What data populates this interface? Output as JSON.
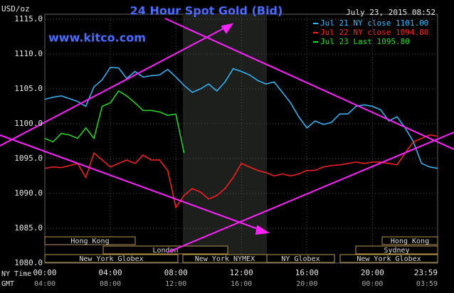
{
  "chart_data": {
    "type": "line",
    "title": "24 Hour Spot Gold (Bid)",
    "site": "www.kitco.com",
    "unit": "USD/oz",
    "timestamp": "July 23, 2015 08:52",
    "x_axis_labels": [
      "NY Time",
      "GMT"
    ],
    "x": [
      0,
      0.5,
      1,
      1.5,
      2,
      2.5,
      3,
      3.5,
      4,
      4.5,
      5,
      5.5,
      6,
      6.5,
      7,
      7.5,
      8,
      8.5,
      9,
      9.5,
      10,
      10.5,
      11,
      11.5,
      12,
      12.5,
      13,
      13.5,
      14,
      14.5,
      15,
      15.5,
      16,
      16.5,
      17,
      17.5,
      18,
      18.5,
      19,
      19.5,
      20,
      20.5,
      21,
      21.5,
      22,
      22.5,
      23,
      23.5,
      23.98
    ],
    "xlim": [
      0,
      23.98
    ],
    "xticks": [
      {
        "value": 0,
        "label": "00:00"
      },
      {
        "value": 4,
        "label": "04:00"
      },
      {
        "value": 8,
        "label": "08:00"
      },
      {
        "value": 12,
        "label": "12:00"
      },
      {
        "value": 16,
        "label": "16:00"
      },
      {
        "value": 20,
        "label": "20:00"
      },
      {
        "value": 23.98,
        "label": "23:59"
      }
    ],
    "gmt_tick_labels": [
      "04:00",
      "08:00",
      "12:00",
      "16:00",
      "20:00",
      "00:00",
      "03:59"
    ],
    "ylim": [
      1080,
      1115
    ],
    "yticks": [
      {
        "value": 1080,
        "label": "1080.0"
      },
      {
        "value": 1085,
        "label": "1085.0"
      },
      {
        "value": 1090,
        "label": "1090.0"
      },
      {
        "value": 1095,
        "label": "1095.0"
      },
      {
        "value": 1100,
        "label": "1100.0"
      },
      {
        "value": 1105,
        "label": "1105.0"
      },
      {
        "value": 1110,
        "label": "1110.0"
      },
      {
        "value": 1115,
        "label": "1115.0"
      }
    ],
    "grid": true,
    "sessions": [
      "Hong Kong",
      "London",
      "New York Globex",
      "New York NYMEX",
      "NY Globex",
      "Hong Kong",
      "Sydney",
      "New York Globex"
    ],
    "series": [
      {
        "name": "Jul 21 NY close 1101.00",
        "color": "#33bbff",
        "values": [
          1103.5,
          1103.8,
          1104,
          1103.6,
          1103.2,
          1102.5,
          1105.3,
          1106.3,
          1108.1,
          1108,
          1106.5,
          1107.5,
          1106.7,
          1106.9,
          1107,
          1107.8,
          1106.7,
          1105.5,
          1104.5,
          1105,
          1105.7,
          1104.7,
          1106,
          1107.9,
          1107.5,
          1107,
          1106.2,
          1105.7,
          1106,
          1104.5,
          1103,
          1101,
          1099.4,
          1100.4,
          1099.9,
          1100.2,
          1101.4,
          1101.4,
          1102.5,
          1102.7,
          1102.5,
          1102,
          1100.4,
          1101,
          1099.4,
          1097.4,
          1094.3,
          1093.8,
          1093.6
        ]
      },
      {
        "name": "Jul 22 NY close 1094.80",
        "color": "#ff2020",
        "values": [
          1093.6,
          1093.8,
          1093.7,
          1094,
          1094.3,
          1092.3,
          1095.8,
          1094.8,
          1093.8,
          1094.3,
          1094.8,
          1094.3,
          1095.5,
          1094.8,
          1094.8,
          1093.3,
          1088,
          1089.7,
          1090.7,
          1090.2,
          1089.2,
          1089.7,
          1090.7,
          1092.3,
          1094.3,
          1093.8,
          1093.3,
          1093,
          1092.5,
          1092.8,
          1092.5,
          1092.8,
          1093.3,
          1093.3,
          1093.8,
          1094,
          1094.1,
          1094.3,
          1094.5,
          1094.3,
          1094.5,
          1094.5,
          1094.3,
          1094.1,
          1095.8,
          1097.4,
          1097.9,
          1098.4,
          1098.2
        ]
      },
      {
        "name": "Jul 23 Last 1095.80",
        "color": "#22dd22",
        "values": [
          1097.9,
          1097.4,
          1098.6,
          1098.4,
          1097.9,
          1099.4,
          1097.9,
          1102.5,
          1103,
          1104.7,
          1104,
          1103,
          1101.9,
          1101.9,
          1101.7,
          1101.2,
          1101.4,
          1095.8,
          null,
          null,
          null,
          null,
          null,
          null,
          null,
          null,
          null,
          null,
          null,
          null,
          null,
          null,
          null,
          null,
          null,
          null,
          null,
          null,
          null,
          null,
          null,
          null,
          null,
          null,
          null,
          null,
          null,
          null,
          null
        ]
      }
    ]
  }
}
